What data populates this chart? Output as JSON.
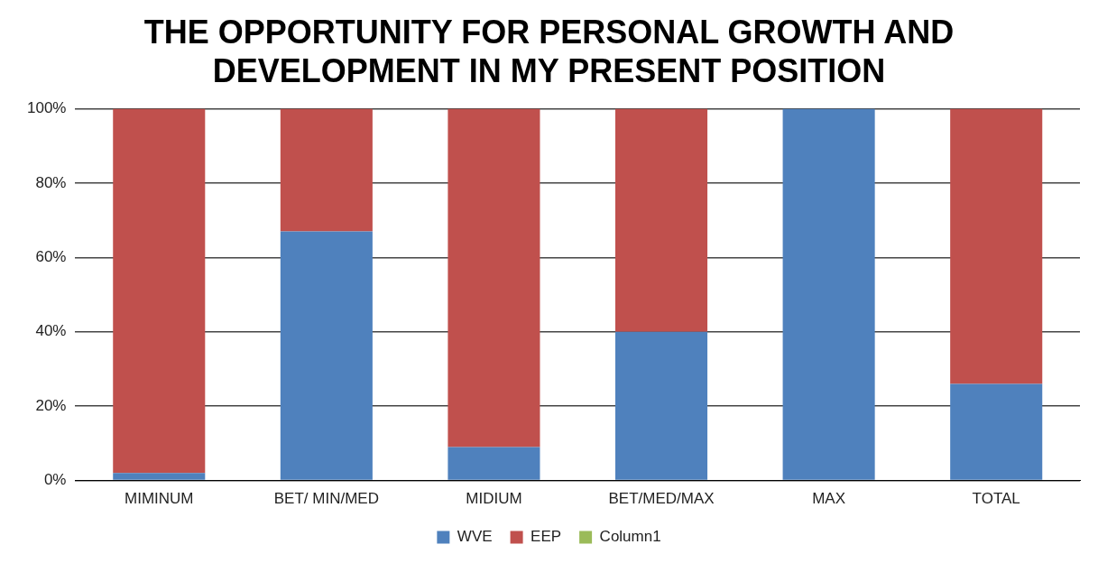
{
  "chart_data": {
    "type": "bar",
    "title": "THE OPPORTUNITY FOR PERSONAL GROWTH AND DEVELOPMENT IN MY PRESENT POSITION",
    "categories": [
      "MIMINUM",
      "BET/ MIN/MED",
      "MIDIUM",
      "BET/MED/MAX",
      "MAX",
      "TOTAL"
    ],
    "series": [
      {
        "name": "WVE",
        "color": "#4f81bd",
        "values": [
          2,
          67,
          9,
          40,
          100,
          26
        ]
      },
      {
        "name": "EEP",
        "color": "#c0504d",
        "values": [
          98,
          33,
          91,
          60,
          0,
          74
        ]
      },
      {
        "name": "Column1",
        "color": "#9bbb59",
        "values": [
          null,
          null,
          null,
          null,
          null,
          null
        ]
      }
    ],
    "stacked": true,
    "ylim": [
      0,
      100
    ],
    "yticks": [
      {
        "value": 0,
        "label": "0%"
      },
      {
        "value": 20,
        "label": "20%"
      },
      {
        "value": 40,
        "label": "40%"
      },
      {
        "value": 60,
        "label": "60%"
      },
      {
        "value": 80,
        "label": "80%"
      },
      {
        "value": 100,
        "label": "100%"
      }
    ],
    "grid": "y",
    "legend": "bottom"
  }
}
